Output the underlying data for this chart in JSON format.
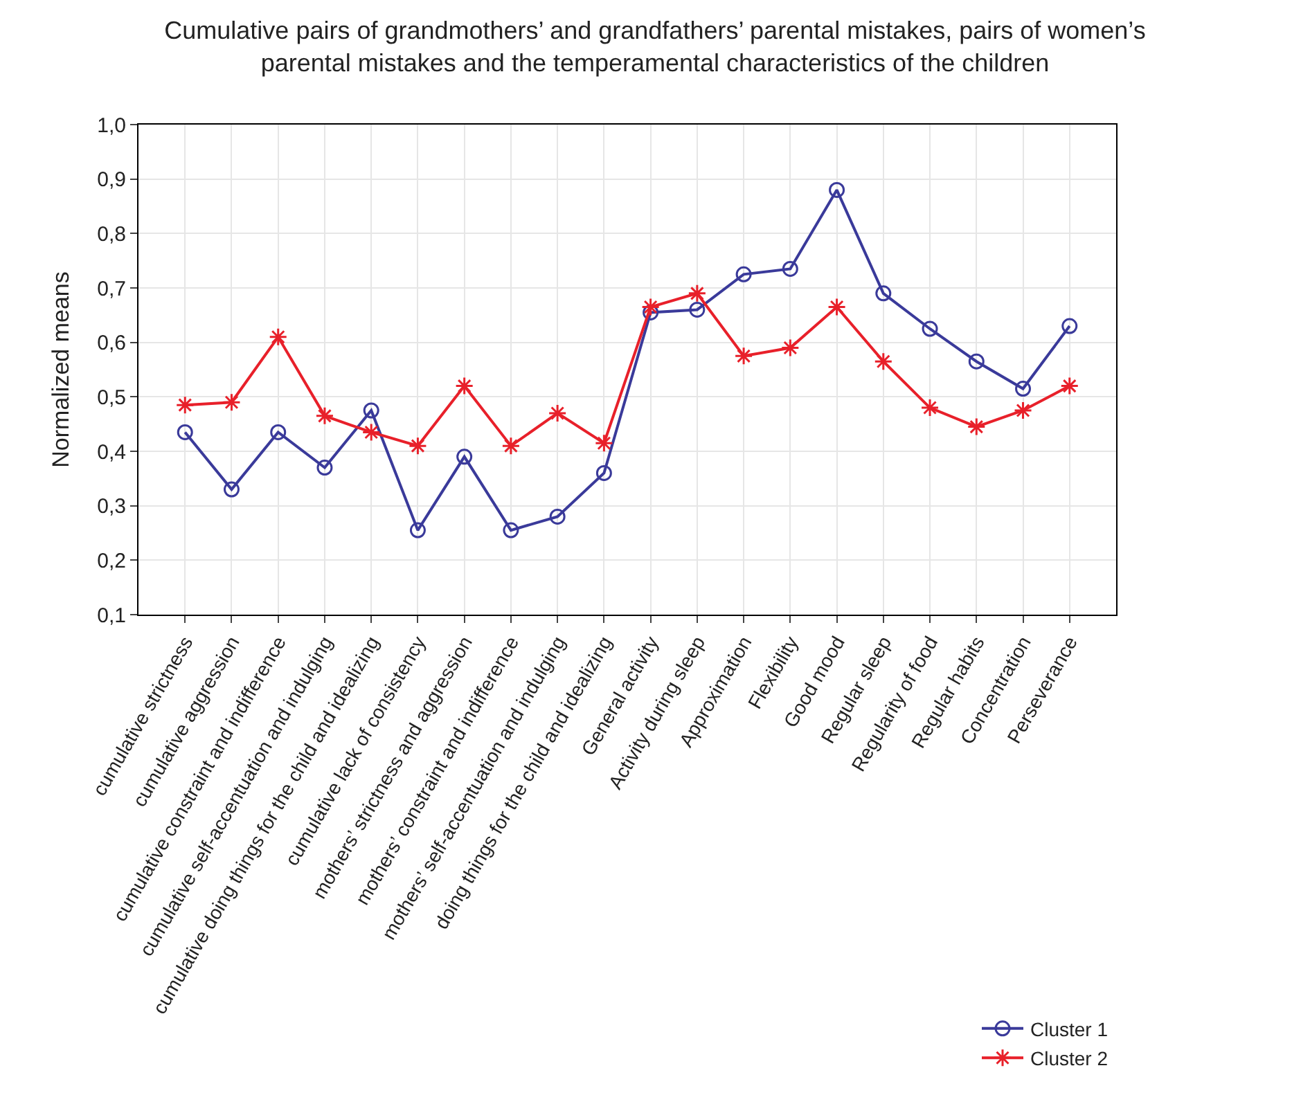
{
  "chart_data": {
    "type": "line",
    "title": "Cumulative pairs of grandmothers’ and grandfathers’ parental mistakes, pairs of women’s\nparental mistakes and the temperamental characteristics of the children",
    "ylabel": "Normalized means",
    "categories": [
      "cumulative strictness",
      "cumulative aggression",
      "cumulative constraint and indifference",
      "cumulative self-accentuation and indulging",
      "cumulative doing things for the child and idealizing",
      "cumulative lack of consistency",
      "mothers’ strictness and aggression",
      "mothers’ constraint and indifference",
      "mothers’ self-accentuation and indulging",
      "doing things for the child and idealizing",
      "General activity",
      "Activity during sleep",
      "Approximation",
      "Flexibility",
      "Good mood",
      "Regular sleep",
      "Regularity of food",
      "Regular habits",
      "Concentration",
      "Perseverance"
    ],
    "series": [
      {
        "name": "Cluster 1",
        "color": "#3a3a9a",
        "marker": "circle",
        "values": [
          0.435,
          0.33,
          0.435,
          0.37,
          0.475,
          0.255,
          0.39,
          0.255,
          0.28,
          0.36,
          0.655,
          0.66,
          0.725,
          0.735,
          0.88,
          0.69,
          0.625,
          0.565,
          0.515,
          0.63
        ]
      },
      {
        "name": "Cluster 2",
        "color": "#e8202a",
        "marker": "cross",
        "values": [
          0.485,
          0.49,
          0.61,
          0.465,
          0.435,
          0.41,
          0.52,
          0.41,
          0.47,
          0.415,
          0.665,
          0.69,
          0.575,
          0.59,
          0.665,
          0.565,
          0.48,
          0.445,
          0.475,
          0.52
        ]
      }
    ],
    "ylim": [
      0.1,
      1.0
    ],
    "yticks": [
      {
        "value": 0.1,
        "label": "0,1"
      },
      {
        "value": 0.2,
        "label": "0,2"
      },
      {
        "value": 0.3,
        "label": "0,3"
      },
      {
        "value": 0.4,
        "label": "0,4"
      },
      {
        "value": 0.5,
        "label": "0,5"
      },
      {
        "value": 0.6,
        "label": "0,6"
      },
      {
        "value": 0.7,
        "label": "0,7"
      },
      {
        "value": 0.8,
        "label": "0,8"
      },
      {
        "value": 0.9,
        "label": "0,9"
      },
      {
        "value": 1.0,
        "label": "1,0"
      }
    ],
    "grid": true,
    "legend": "bottom right",
    "line_style": "solid"
  }
}
